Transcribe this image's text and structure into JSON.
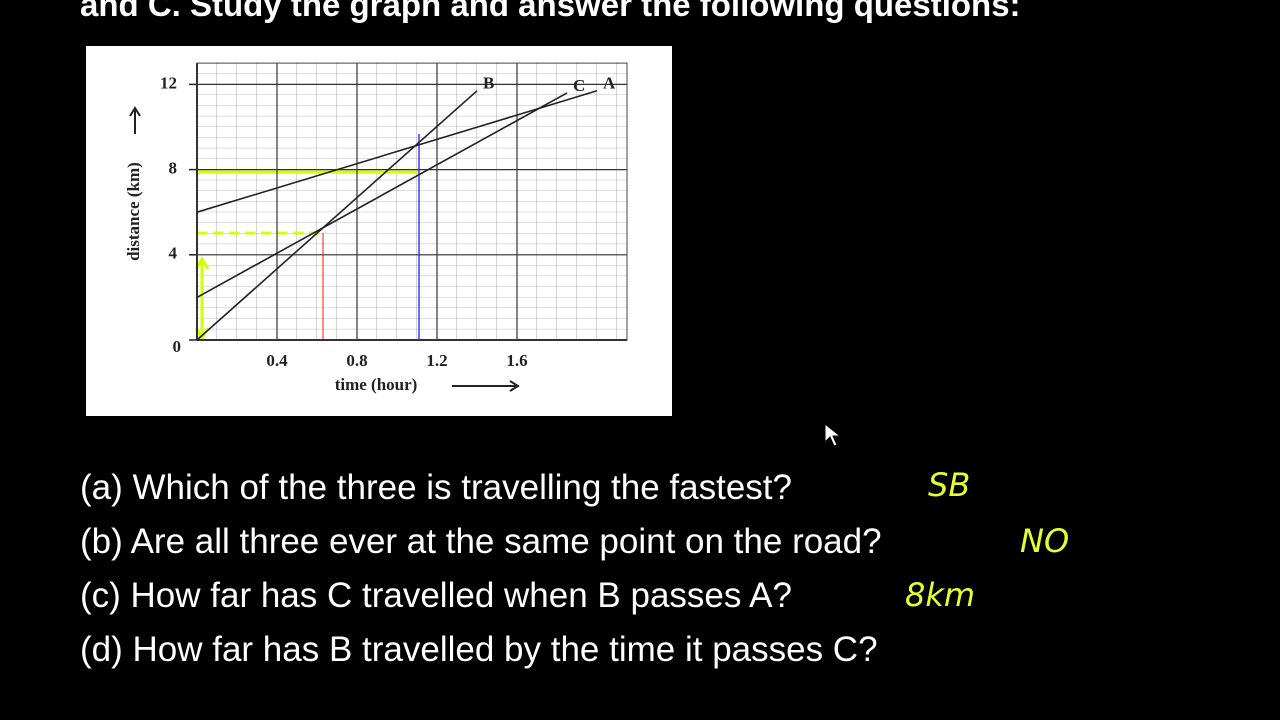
{
  "header": {
    "title": "and C. Study the graph and answer the following questions:"
  },
  "chart_data": {
    "type": "line",
    "xlabel": "time (hour)",
    "ylabel": "distance (km)",
    "xlim": [
      0,
      2.15
    ],
    "ylim": [
      0,
      13
    ],
    "xticks": [
      0.4,
      0.8,
      1.2,
      1.6
    ],
    "yticks": [
      0,
      4,
      8,
      12
    ],
    "grid": true,
    "series": [
      {
        "name": "A",
        "color": "#222222",
        "x": [
          0,
          2.0
        ],
        "values": [
          6,
          11.7
        ]
      },
      {
        "name": "B",
        "color": "#222222",
        "x": [
          0,
          1.4
        ],
        "values": [
          0,
          11.7
        ]
      },
      {
        "name": "C",
        "color": "#222222",
        "x": [
          0,
          1.85
        ],
        "values": [
          2,
          11.6
        ]
      }
    ]
  },
  "questions": [
    {
      "text": "(a) Which of the three is travelling the fastest?",
      "answer": "SB"
    },
    {
      "text": "(b) Are all three ever at the same point on the road?",
      "answer": "NO"
    },
    {
      "text": "(c) How far has C travelled when B passes A?",
      "answer": "8km"
    },
    {
      "text": "(d) How far has B travelled by the time it passes C?"
    }
  ]
}
